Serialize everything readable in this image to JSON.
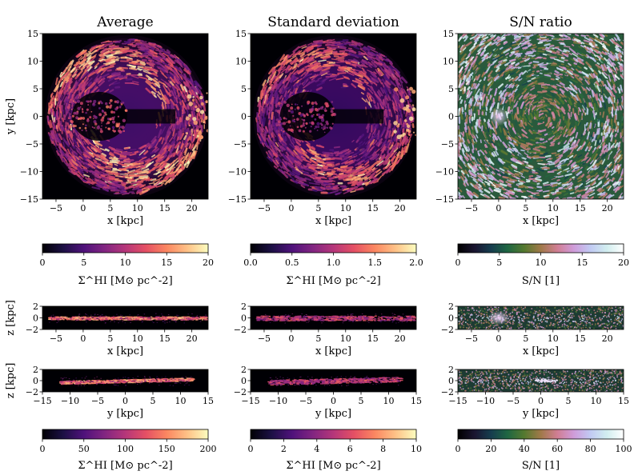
{
  "chart_data": [
    {
      "type": "heatmap",
      "id": "avg-face",
      "title": "Average",
      "xlabel": "x [kpc]",
      "ylabel": "y [kpc]",
      "xlim": [
        -7.5,
        23
      ],
      "ylim": [
        -15,
        15
      ],
      "xticks": [
        -5,
        0,
        5,
        10,
        15,
        20
      ],
      "yticks": [
        -15,
        -10,
        -5,
        0,
        5,
        10,
        15
      ],
      "cmap": "magma",
      "vmin": 0,
      "vmax": 20,
      "colorbar_label": "Σ^HI [M⊙ pc^-2]",
      "cbar_ticks": [
        "0",
        "5",
        "10",
        "15",
        "20"
      ]
    },
    {
      "type": "heatmap",
      "id": "std-face",
      "title": "Standard deviation",
      "xlabel": "x [kpc]",
      "ylabel": "",
      "xlim": [
        -7.5,
        23
      ],
      "ylim": [
        -15,
        15
      ],
      "xticks": [
        -5,
        0,
        5,
        10,
        15,
        20
      ],
      "yticks": [
        -15,
        -10,
        -5,
        0,
        5,
        10,
        15
      ],
      "cmap": "magma",
      "vmin": 0,
      "vmax": 2,
      "colorbar_label": "Σ^HI [M⊙ pc^-2]",
      "cbar_ticks": [
        "0.0",
        "0.5",
        "1.0",
        "1.5",
        "2.0"
      ]
    },
    {
      "type": "heatmap",
      "id": "sn-face",
      "title": "S/N ratio",
      "xlabel": "x [kpc]",
      "ylabel": "",
      "xlim": [
        -7.5,
        23
      ],
      "ylim": [
        -15,
        15
      ],
      "xticks": [
        -5,
        0,
        5,
        10,
        15,
        20
      ],
      "yticks": [
        -15,
        -10,
        -5,
        0,
        5,
        10,
        15
      ],
      "cmap": "cubehelix",
      "vmin": 0,
      "vmax": 20,
      "colorbar_label": "S/N [1]",
      "cbar_ticks": [
        "0",
        "5",
        "10",
        "15",
        "20"
      ]
    },
    {
      "type": "heatmap",
      "id": "avg-xz",
      "xlabel": "x [kpc]",
      "ylabel": "z [kpc]",
      "xlim": [
        -7.5,
        23
      ],
      "ylim": [
        -2,
        2
      ],
      "xticks": [
        -5,
        0,
        5,
        10,
        15,
        20
      ],
      "yticks": [
        -2,
        0,
        2
      ],
      "cmap": "magma"
    },
    {
      "type": "heatmap",
      "id": "std-xz",
      "xlabel": "x [kpc]",
      "ylabel": "",
      "xlim": [
        -7.5,
        23
      ],
      "ylim": [
        -2,
        2
      ],
      "xticks": [
        -5,
        0,
        5,
        10,
        15,
        20
      ],
      "yticks": [
        -2,
        0,
        2
      ],
      "cmap": "magma"
    },
    {
      "type": "heatmap",
      "id": "sn-xz",
      "xlabel": "x [kpc]",
      "ylabel": "",
      "xlim": [
        -7.5,
        23
      ],
      "ylim": [
        -2,
        2
      ],
      "xticks": [
        -5,
        0,
        5,
        10,
        15,
        20
      ],
      "yticks": [
        -2,
        0,
        2
      ],
      "cmap": "cubehelix"
    },
    {
      "type": "heatmap",
      "id": "avg-yz",
      "xlabel": "y [kpc]",
      "ylabel": "z [kpc]",
      "xlim": [
        -15,
        15
      ],
      "ylim": [
        -2,
        2
      ],
      "xticks": [
        -15,
        -10,
        -5,
        0,
        5,
        10,
        15
      ],
      "yticks": [
        -2,
        0,
        2
      ],
      "cmap": "magma",
      "vmin": 0,
      "vmax": 200,
      "colorbar_label": "Σ^HI [M⊙ pc^-2]",
      "cbar_ticks": [
        "0",
        "50",
        "100",
        "150",
        "200"
      ]
    },
    {
      "type": "heatmap",
      "id": "std-yz",
      "xlabel": "y [kpc]",
      "ylabel": "",
      "xlim": [
        -15,
        15
      ],
      "ylim": [
        -2,
        2
      ],
      "xticks": [
        -15,
        -10,
        -5,
        0,
        5,
        10,
        15
      ],
      "yticks": [
        -2,
        0,
        2
      ],
      "cmap": "magma",
      "vmin": 0,
      "vmax": 10,
      "colorbar_label": "Σ^HI [M⊙ pc^-2]",
      "cbar_ticks": [
        "0",
        "2",
        "4",
        "6",
        "8",
        "10"
      ]
    },
    {
      "type": "heatmap",
      "id": "sn-yz",
      "xlabel": "y [kpc]",
      "ylabel": "",
      "xlim": [
        -15,
        15
      ],
      "ylim": [
        -2,
        2
      ],
      "xticks": [
        -15,
        -10,
        -5,
        0,
        5,
        10,
        15
      ],
      "yticks": [
        -2,
        0,
        2
      ],
      "cmap": "cubehelix",
      "vmin": 0,
      "vmax": 100,
      "colorbar_label": "S/N [1]",
      "cbar_ticks": [
        "0",
        "20",
        "40",
        "60",
        "80",
        "100"
      ]
    }
  ],
  "colormaps": {
    "magma": [
      "#000004",
      "#1c1044",
      "#4f127b",
      "#812581",
      "#b5367a",
      "#e55064",
      "#fb8761",
      "#fec287",
      "#fcfdbf"
    ],
    "cubehelix": [
      "#000000",
      "#1a1530",
      "#163d4e",
      "#1f6642",
      "#54792f",
      "#a07949",
      "#d07e93",
      "#cf9cda",
      "#c1caf3",
      "#d2eeef",
      "#ffffff"
    ]
  }
}
